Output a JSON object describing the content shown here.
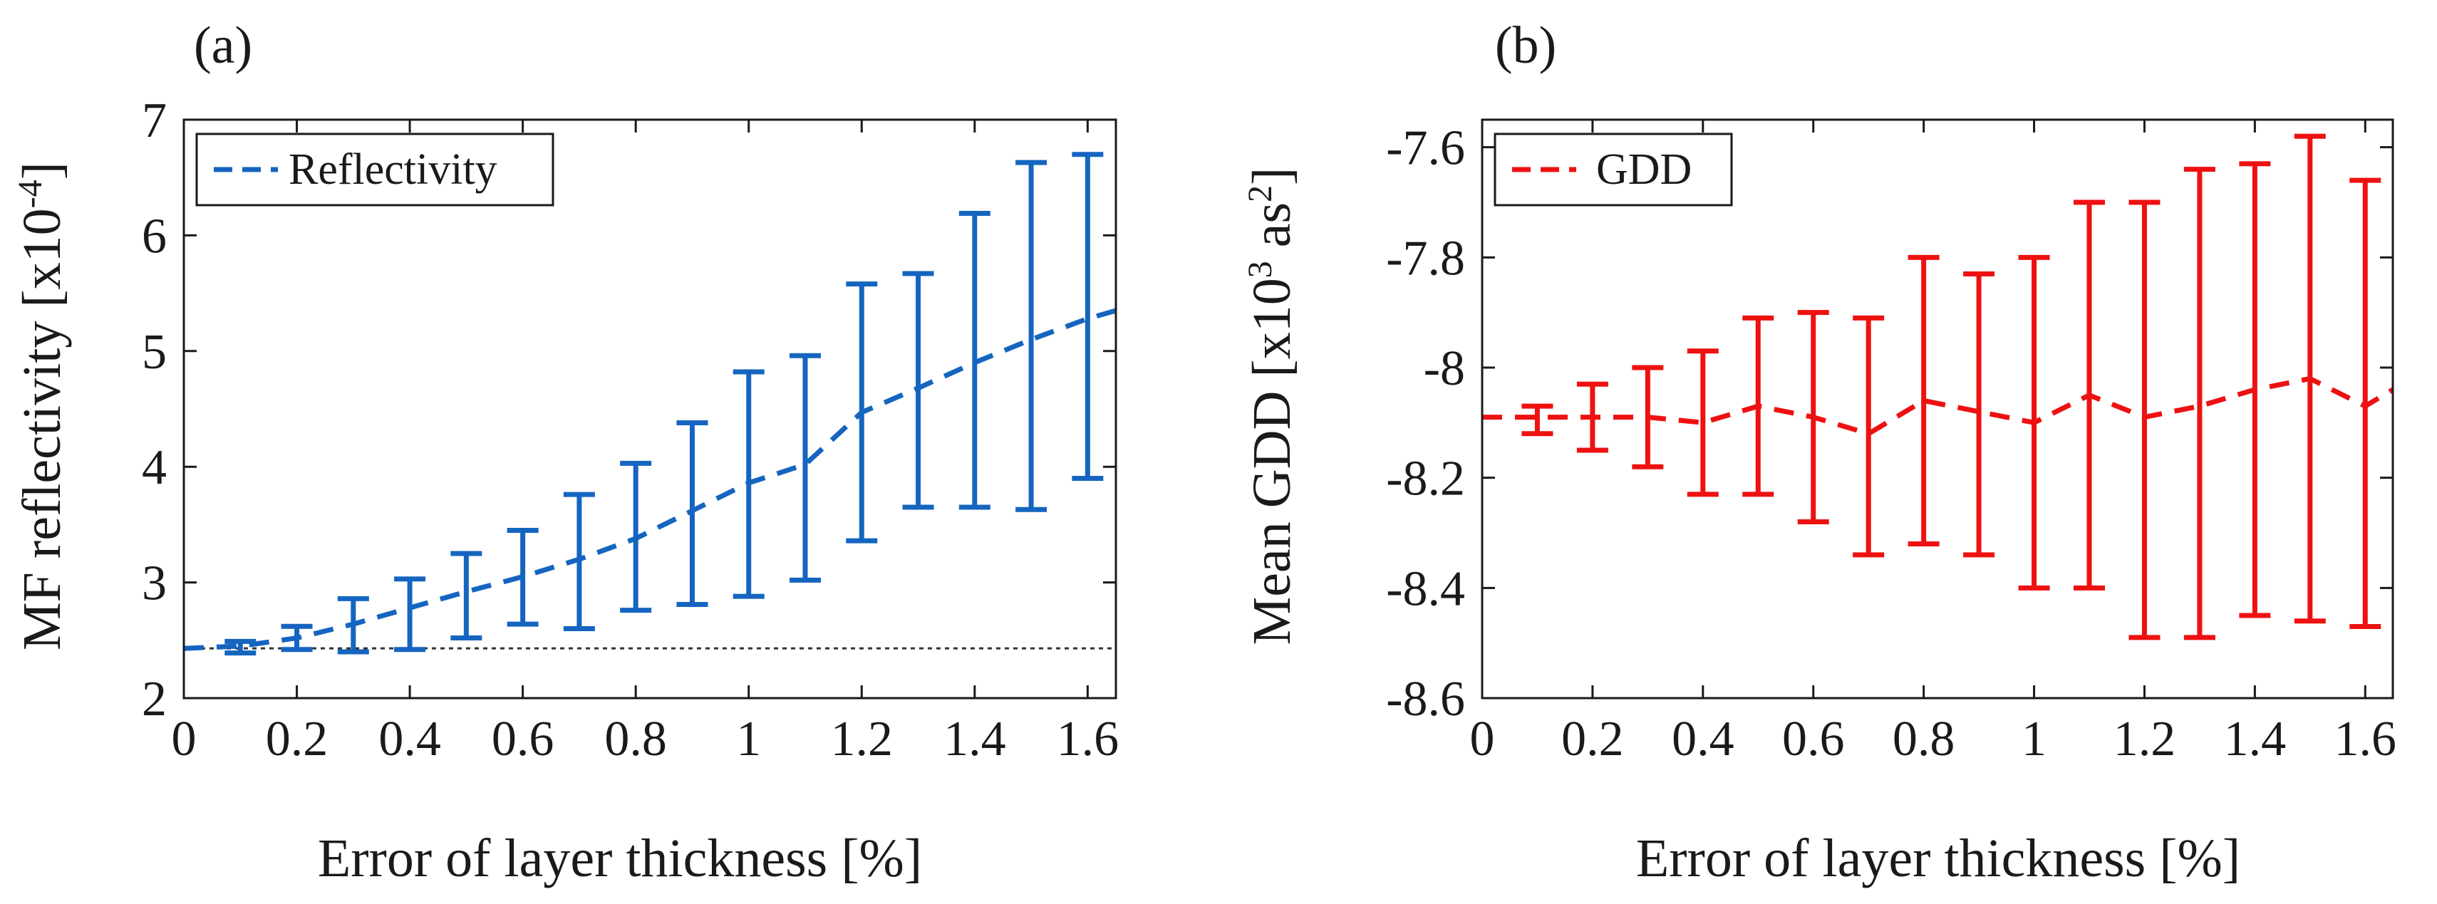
{
  "chart_data": [
    {
      "panel_label": "(a)",
      "type": "line",
      "title": "",
      "xlabel": "Error of layer thickness [%]",
      "ylabel": "MF reflectivity [x10",
      "ylabel_sup": "-4",
      "ylabel_end": "]",
      "xlim": [
        0,
        1.65
      ],
      "ylim": [
        2,
        7
      ],
      "xticks": [
        0,
        0.2,
        0.4,
        0.6,
        0.8,
        1,
        1.2,
        1.4,
        1.6
      ],
      "xtick_labels": [
        "0",
        "0.2",
        "0.4",
        "0.6",
        "0.8",
        "1",
        "1.2",
        "1.4",
        "1.6"
      ],
      "yticks": [
        2,
        3,
        4,
        5,
        6,
        7
      ],
      "ytick_labels": [
        "2",
        "3",
        "4",
        "5",
        "6",
        "7"
      ],
      "legend": {
        "label": "Reflectivity",
        "position": "top-left"
      },
      "reference_line": 2.43,
      "color": "#1565c0",
      "series": [
        {
          "name": "Reflectivity",
          "x": [
            0,
            0.1,
            0.2,
            0.3,
            0.4,
            0.5,
            0.6,
            0.7,
            0.8,
            0.9,
            1.0,
            1.1,
            1.2,
            1.3,
            1.4,
            1.5,
            1.6,
            1.65
          ],
          "y": [
            2.43,
            2.45,
            2.52,
            2.64,
            2.78,
            2.92,
            3.05,
            3.2,
            3.38,
            3.62,
            3.86,
            4.02,
            4.47,
            4.68,
            4.9,
            5.1,
            5.28,
            5.35
          ]
        }
      ],
      "error_bars": [
        {
          "x": 0.1,
          "lo": 2.39,
          "hi": 2.49
        },
        {
          "x": 0.2,
          "lo": 2.42,
          "hi": 2.62
        },
        {
          "x": 0.3,
          "lo": 2.4,
          "hi": 2.86
        },
        {
          "x": 0.4,
          "lo": 2.42,
          "hi": 3.03
        },
        {
          "x": 0.5,
          "lo": 2.52,
          "hi": 3.25
        },
        {
          "x": 0.6,
          "lo": 2.64,
          "hi": 3.45
        },
        {
          "x": 0.7,
          "lo": 2.6,
          "hi": 3.76
        },
        {
          "x": 0.8,
          "lo": 2.76,
          "hi": 4.03
        },
        {
          "x": 0.9,
          "lo": 2.81,
          "hi": 4.38
        },
        {
          "x": 1.0,
          "lo": 2.88,
          "hi": 4.82
        },
        {
          "x": 1.1,
          "lo": 3.02,
          "hi": 4.96
        },
        {
          "x": 1.2,
          "lo": 3.36,
          "hi": 5.58
        },
        {
          "x": 1.3,
          "lo": 3.65,
          "hi": 5.67
        },
        {
          "x": 1.4,
          "lo": 3.65,
          "hi": 6.19
        },
        {
          "x": 1.5,
          "lo": 3.63,
          "hi": 6.63
        },
        {
          "x": 1.6,
          "lo": 3.9,
          "hi": 6.7
        }
      ]
    },
    {
      "panel_label": "(b)",
      "type": "line",
      "title": "",
      "xlabel": "Error of layer thickness [%]",
      "ylabel": "Mean GDD [x10",
      "ylabel_sup": "3",
      "ylabel_mid": " as",
      "ylabel_sup2": "2",
      "ylabel_end": "]",
      "xlim": [
        0,
        1.65
      ],
      "ylim": [
        -8.6,
        -7.55
      ],
      "xticks": [
        0,
        0.2,
        0.4,
        0.6,
        0.8,
        1,
        1.2,
        1.4,
        1.6
      ],
      "xtick_labels": [
        "0",
        "0.2",
        "0.4",
        "0.6",
        "0.8",
        "1",
        "1.2",
        "1.4",
        "1.6"
      ],
      "yticks": [
        -8.6,
        -8.4,
        -8.2,
        -8,
        -7.8,
        -7.6
      ],
      "ytick_labels": [
        "-8.6",
        "-8.4",
        "-8.2",
        "-8",
        "-7.8",
        "-7.6"
      ],
      "legend": {
        "label": "GDD",
        "position": "top-left"
      },
      "color": "#ee1111",
      "series": [
        {
          "name": "GDD",
          "x": [
            0,
            0.1,
            0.2,
            0.3,
            0.4,
            0.5,
            0.6,
            0.7,
            0.8,
            0.9,
            1.0,
            1.1,
            1.2,
            1.3,
            1.4,
            1.5,
            1.6,
            1.65
          ],
          "y": [
            -8.09,
            -8.09,
            -8.09,
            -8.09,
            -8.1,
            -8.07,
            -8.09,
            -8.12,
            -8.06,
            -8.08,
            -8.1,
            -8.05,
            -8.09,
            -8.07,
            -8.04,
            -8.02,
            -8.07,
            -8.04
          ]
        }
      ],
      "error_bars": [
        {
          "x": 0.1,
          "lo": -8.12,
          "hi": -8.07
        },
        {
          "x": 0.2,
          "lo": -8.15,
          "hi": -8.03
        },
        {
          "x": 0.3,
          "lo": -8.18,
          "hi": -8.0
        },
        {
          "x": 0.4,
          "lo": -8.23,
          "hi": -7.97
        },
        {
          "x": 0.5,
          "lo": -8.23,
          "hi": -7.91
        },
        {
          "x": 0.6,
          "lo": -8.28,
          "hi": -7.9
        },
        {
          "x": 0.7,
          "lo": -8.34,
          "hi": -7.91
        },
        {
          "x": 0.8,
          "lo": -8.32,
          "hi": -7.8
        },
        {
          "x": 0.9,
          "lo": -8.34,
          "hi": -7.83
        },
        {
          "x": 1.0,
          "lo": -8.4,
          "hi": -7.8
        },
        {
          "x": 1.1,
          "lo": -8.4,
          "hi": -7.7
        },
        {
          "x": 1.2,
          "lo": -8.49,
          "hi": -7.7
        },
        {
          "x": 1.3,
          "lo": -8.49,
          "hi": -7.64
        },
        {
          "x": 1.4,
          "lo": -8.45,
          "hi": -7.63
        },
        {
          "x": 1.5,
          "lo": -8.46,
          "hi": -7.58
        },
        {
          "x": 1.6,
          "lo": -8.47,
          "hi": -7.66
        }
      ]
    }
  ]
}
